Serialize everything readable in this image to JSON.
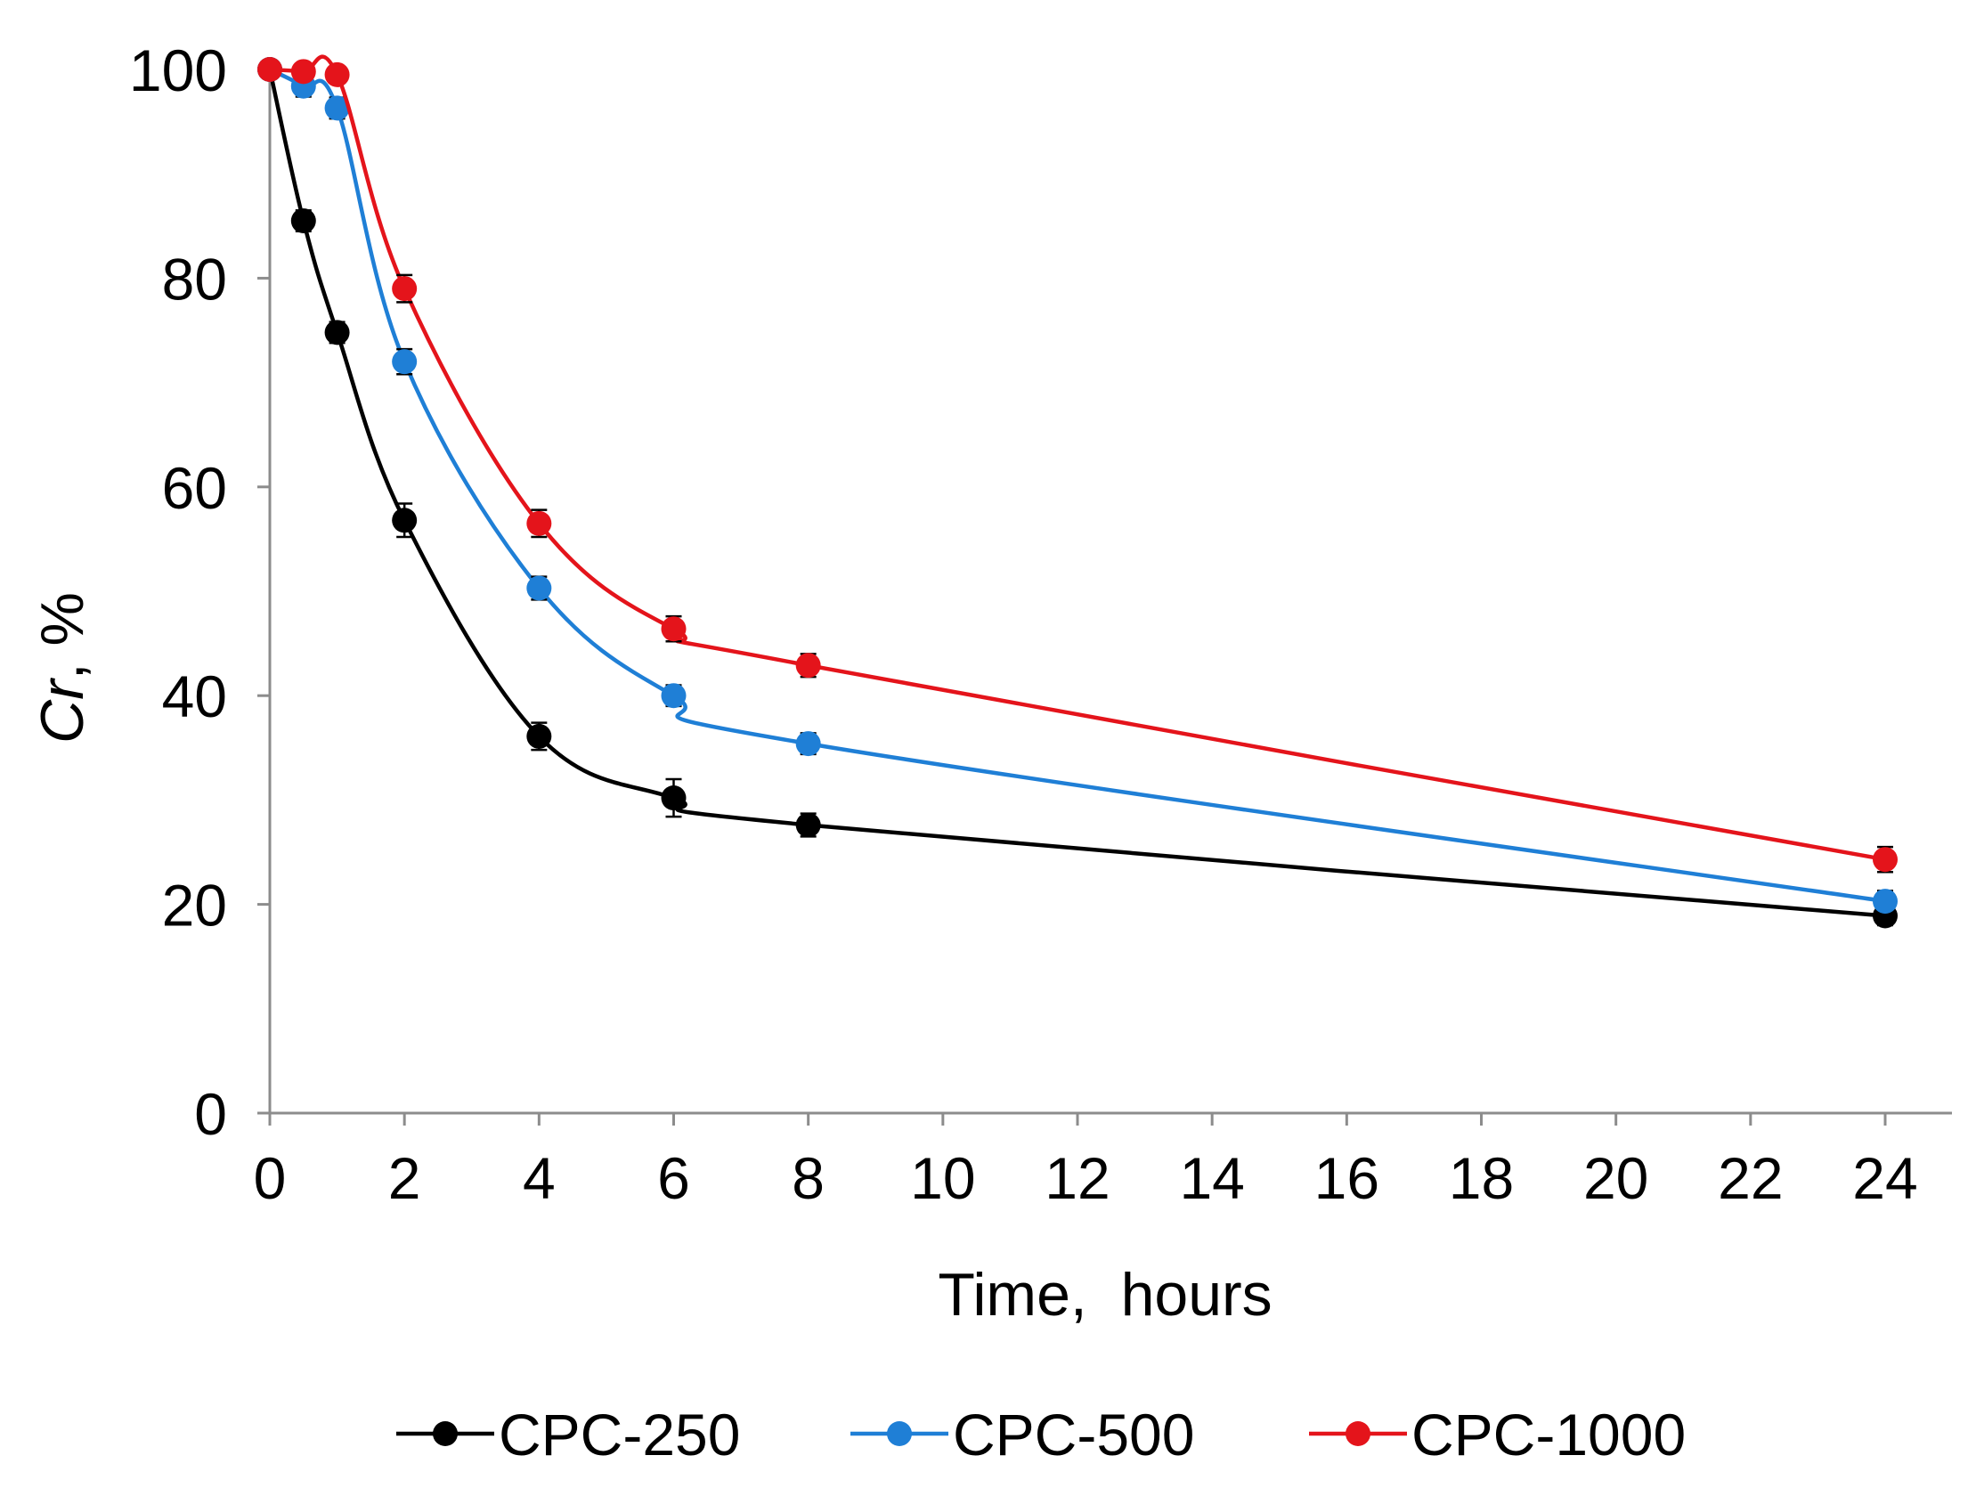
{
  "chart_data": {
    "type": "line",
    "title": "",
    "xlabel": "Time,  hours",
    "ylabel_main": "Cr",
    "ylabel_suffix": ", %",
    "xlim": [
      0,
      24
    ],
    "ylim": [
      0,
      100
    ],
    "xticks": [
      0,
      2,
      4,
      6,
      8,
      10,
      12,
      14,
      16,
      18,
      20,
      22,
      24
    ],
    "yticks": [
      0,
      20,
      40,
      60,
      80,
      100
    ],
    "legend_position": "bottom",
    "series": [
      {
        "name": "CPC-250",
        "color": "#000000",
        "x": [
          0,
          0.5,
          1,
          2,
          4,
          6,
          8,
          24
        ],
        "y": [
          100,
          85.5,
          74.8,
          56.8,
          36.1,
          30.2,
          27.6,
          18.9
        ],
        "err": [
          0,
          1,
          1,
          1.6,
          1.3,
          1.8,
          1.1,
          0.9
        ]
      },
      {
        "name": "CPC-500",
        "color": "#1f7fd6",
        "x": [
          0,
          0.5,
          1,
          2,
          4,
          6,
          8,
          24
        ],
        "y": [
          100,
          98.4,
          96.3,
          72.0,
          50.3,
          40.0,
          35.4,
          20.3
        ],
        "err": [
          0,
          1,
          1,
          1.2,
          1.1,
          1.0,
          1.0,
          1.0
        ]
      },
      {
        "name": "CPC-1000",
        "color": "#e4141b",
        "x": [
          0,
          0.5,
          1,
          2,
          4,
          6,
          8,
          24
        ],
        "y": [
          100,
          99.8,
          99.5,
          79.0,
          56.5,
          46.4,
          42.9,
          24.3
        ],
        "err": [
          0,
          0.5,
          0.5,
          1.3,
          1.3,
          1.2,
          1.1,
          1.2
        ]
      }
    ]
  }
}
